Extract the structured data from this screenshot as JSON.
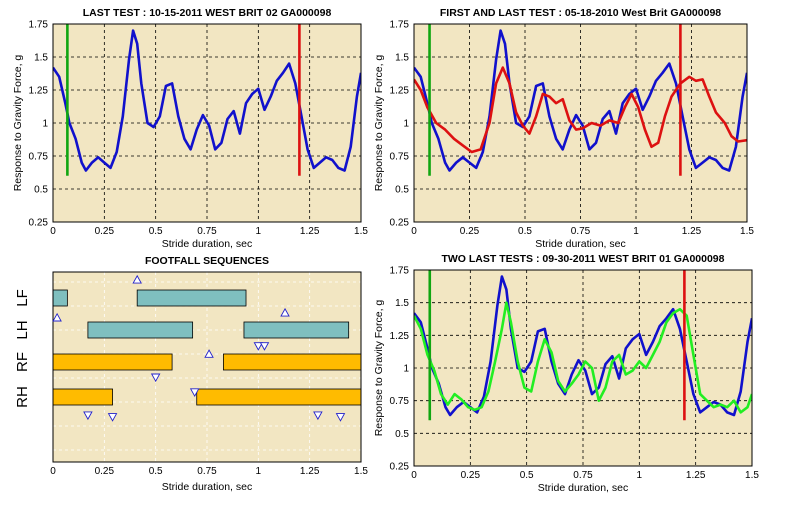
{
  "colors": {
    "plot_bg": "#f2e6c2",
    "blue": "#1111cc",
    "red": "#dd1111",
    "green": "#11a611",
    "lime": "#22ee22",
    "teal": "#7fbfbf",
    "orange": "#ffbb00"
  },
  "chart_data": [
    {
      "type": "line",
      "title": "LAST TEST : 10-15-2011 WEST BRIT 02 GA000098",
      "xlabel": "Stride duration, sec",
      "ylabel": "Response to Gravity Force, g",
      "xlim": [
        0,
        1.5
      ],
      "ylim": [
        0.25,
        1.75
      ],
      "xticks": [
        "0",
        "0.25",
        "0.5",
        "0.75",
        "1",
        "1.25",
        "1.5"
      ],
      "yticks": [
        "0.25",
        "0.5",
        "0.75",
        "1",
        "1.25",
        "1.5",
        "1.75"
      ],
      "grid": true,
      "markers": [
        {
          "x": 0.07,
          "y0": 0.6,
          "y1": 1.75,
          "color": "green"
        },
        {
          "x": 1.2,
          "y0": 0.6,
          "y1": 1.75,
          "color": "red"
        }
      ],
      "series": [
        {
          "color": "blue",
          "x": [
            0,
            0.03,
            0.06,
            0.08,
            0.11,
            0.14,
            0.16,
            0.19,
            0.22,
            0.25,
            0.28,
            0.31,
            0.34,
            0.37,
            0.39,
            0.41,
            0.43,
            0.46,
            0.49,
            0.52,
            0.55,
            0.58,
            0.61,
            0.64,
            0.67,
            0.7,
            0.73,
            0.76,
            0.79,
            0.82,
            0.85,
            0.88,
            0.91,
            0.94,
            0.97,
            1.0,
            1.03,
            1.06,
            1.09,
            1.12,
            1.15,
            1.18,
            1.21,
            1.24,
            1.27,
            1.3,
            1.33,
            1.36,
            1.39,
            1.42,
            1.45,
            1.48,
            1.5
          ],
          "y": [
            1.42,
            1.35,
            1.15,
            1.0,
            0.88,
            0.7,
            0.64,
            0.7,
            0.74,
            0.7,
            0.66,
            0.78,
            1.05,
            1.48,
            1.7,
            1.6,
            1.3,
            1.0,
            0.97,
            1.05,
            1.28,
            1.3,
            1.05,
            0.88,
            0.8,
            0.95,
            1.06,
            0.98,
            0.8,
            0.85,
            1.03,
            1.09,
            0.92,
            1.15,
            1.22,
            1.26,
            1.1,
            1.2,
            1.32,
            1.38,
            1.45,
            1.3,
            1.05,
            0.8,
            0.66,
            0.7,
            0.74,
            0.72,
            0.66,
            0.64,
            0.82,
            1.2,
            1.38
          ]
        }
      ]
    },
    {
      "type": "line",
      "title": "FIRST AND LAST TEST : 05-18-2010 West Brit GA000098",
      "xlabel": "Stride duration, sec",
      "ylabel": "Response to Gravity Force, g",
      "xlim": [
        0,
        1.5
      ],
      "ylim": [
        0.25,
        1.75
      ],
      "xticks": [
        "0",
        "0.25",
        "0.5",
        "0.75",
        "1",
        "1.25",
        "1.5"
      ],
      "yticks": [
        "0.25",
        "0.5",
        "0.75",
        "1",
        "1.25",
        "1.5",
        "1.75"
      ],
      "grid": true,
      "markers": [
        {
          "x": 0.07,
          "y0": 0.6,
          "y1": 1.75,
          "color": "green"
        },
        {
          "x": 1.2,
          "y0": 0.6,
          "y1": 1.75,
          "color": "red"
        }
      ],
      "series": [
        {
          "color": "blue",
          "x": [
            0,
            0.03,
            0.06,
            0.08,
            0.11,
            0.14,
            0.16,
            0.19,
            0.22,
            0.25,
            0.28,
            0.31,
            0.34,
            0.37,
            0.39,
            0.41,
            0.43,
            0.46,
            0.49,
            0.52,
            0.55,
            0.58,
            0.61,
            0.64,
            0.67,
            0.7,
            0.73,
            0.76,
            0.79,
            0.82,
            0.85,
            0.88,
            0.91,
            0.94,
            0.97,
            1.0,
            1.03,
            1.06,
            1.09,
            1.12,
            1.15,
            1.18,
            1.21,
            1.24,
            1.27,
            1.3,
            1.33,
            1.36,
            1.39,
            1.42,
            1.45,
            1.48,
            1.5
          ],
          "y": [
            1.42,
            1.35,
            1.15,
            1.0,
            0.88,
            0.7,
            0.64,
            0.7,
            0.74,
            0.7,
            0.66,
            0.78,
            1.05,
            1.48,
            1.7,
            1.6,
            1.3,
            1.0,
            0.97,
            1.05,
            1.28,
            1.3,
            1.05,
            0.88,
            0.8,
            0.95,
            1.06,
            0.98,
            0.8,
            0.85,
            1.03,
            1.09,
            0.92,
            1.15,
            1.22,
            1.26,
            1.1,
            1.2,
            1.32,
            1.38,
            1.45,
            1.3,
            1.05,
            0.8,
            0.66,
            0.7,
            0.74,
            0.72,
            0.66,
            0.64,
            0.82,
            1.2,
            1.38
          ]
        },
        {
          "color": "red",
          "x": [
            0,
            0.03,
            0.06,
            0.1,
            0.14,
            0.18,
            0.22,
            0.26,
            0.3,
            0.34,
            0.37,
            0.4,
            0.43,
            0.46,
            0.49,
            0.52,
            0.55,
            0.58,
            0.61,
            0.64,
            0.67,
            0.7,
            0.73,
            0.76,
            0.8,
            0.84,
            0.88,
            0.92,
            0.95,
            0.98,
            1.01,
            1.04,
            1.07,
            1.1,
            1.13,
            1.16,
            1.2,
            1.24,
            1.27,
            1.3,
            1.33,
            1.36,
            1.4,
            1.43,
            1.46,
            1.5
          ],
          "y": [
            1.33,
            1.25,
            1.12,
            1.0,
            0.95,
            0.88,
            0.83,
            0.78,
            0.8,
            1.0,
            1.3,
            1.42,
            1.3,
            1.08,
            0.98,
            0.92,
            1.05,
            1.22,
            1.2,
            1.15,
            1.18,
            1.02,
            0.95,
            0.96,
            1.0,
            0.98,
            1.02,
            1.0,
            1.12,
            1.22,
            1.12,
            0.95,
            0.82,
            0.85,
            1.05,
            1.2,
            1.3,
            1.35,
            1.32,
            1.33,
            1.2,
            1.08,
            1.0,
            0.9,
            0.86,
            0.87
          ]
        }
      ]
    },
    {
      "type": "bar",
      "title": "FOOTFALL SEQUENCES",
      "xlabel": "Stride duration, sec",
      "xlim": [
        0,
        1.5
      ],
      "xticks": [
        "0",
        "0.25",
        "0.5",
        "0.75",
        "1",
        "1.25",
        "1.5"
      ],
      "lanes": [
        "LF",
        "LH",
        "RF",
        "RH"
      ],
      "bars": [
        {
          "lane": 0,
          "start": 0.0,
          "end": 0.07,
          "color": "teal"
        },
        {
          "lane": 0,
          "start": 0.41,
          "end": 0.94,
          "color": "teal"
        },
        {
          "lane": 1,
          "start": 0.17,
          "end": 0.68,
          "color": "teal"
        },
        {
          "lane": 1,
          "start": 0.93,
          "end": 1.44,
          "color": "teal"
        },
        {
          "lane": 2,
          "start": 0.0,
          "end": 0.58,
          "color": "orange"
        },
        {
          "lane": 2,
          "start": 0.83,
          "end": 1.5,
          "color": "orange"
        },
        {
          "lane": 3,
          "start": 0.0,
          "end": 0.29,
          "color": "orange"
        },
        {
          "lane": 3,
          "start": 0.7,
          "end": 1.5,
          "color": "orange"
        }
      ],
      "events": [
        {
          "x": 0.41,
          "lane_pos": -0.55,
          "dir": "up"
        },
        {
          "x": 0.02,
          "lane_pos": 0.6,
          "dir": "up"
        },
        {
          "x": 1.13,
          "lane_pos": 0.45,
          "dir": "up"
        },
        {
          "x": 0.76,
          "lane_pos": 1.7,
          "dir": "up"
        },
        {
          "x": 1.0,
          "lane_pos": 1.45,
          "dir": "down"
        },
        {
          "x": 1.03,
          "lane_pos": 1.45,
          "dir": "down"
        },
        {
          "x": 0.5,
          "lane_pos": 2.4,
          "dir": "down"
        },
        {
          "x": 0.17,
          "lane_pos": 3.55,
          "dir": "down"
        },
        {
          "x": 0.29,
          "lane_pos": 3.6,
          "dir": "down"
        },
        {
          "x": 0.69,
          "lane_pos": 2.85,
          "dir": "down"
        },
        {
          "x": 1.29,
          "lane_pos": 3.55,
          "dir": "down"
        },
        {
          "x": 1.4,
          "lane_pos": 3.6,
          "dir": "down"
        }
      ]
    },
    {
      "type": "line",
      "title": "TWO LAST TESTS : 09-30-2011 WEST BRIT 01 GA000098",
      "xlabel": "Stride duration, sec",
      "ylabel": "Response to Gravity Force, g",
      "xlim": [
        0,
        1.5
      ],
      "ylim": [
        0.25,
        1.75
      ],
      "xticks": [
        "0",
        "0.25",
        "0.5",
        "0.75",
        "1",
        "1.25",
        "1.5"
      ],
      "yticks": [
        "0.25",
        "0.5",
        "0.75",
        "1",
        "1.25",
        "1.5",
        "1.75"
      ],
      "grid": true,
      "markers": [
        {
          "x": 0.07,
          "y0": 0.6,
          "y1": 1.75,
          "color": "green"
        },
        {
          "x": 1.2,
          "y0": 0.6,
          "y1": 1.75,
          "color": "red"
        }
      ],
      "series": [
        {
          "color": "blue",
          "x": [
            0,
            0.03,
            0.06,
            0.08,
            0.11,
            0.14,
            0.16,
            0.19,
            0.22,
            0.25,
            0.28,
            0.31,
            0.34,
            0.37,
            0.39,
            0.41,
            0.43,
            0.46,
            0.49,
            0.52,
            0.55,
            0.58,
            0.61,
            0.64,
            0.67,
            0.7,
            0.73,
            0.76,
            0.79,
            0.82,
            0.85,
            0.88,
            0.91,
            0.94,
            0.97,
            1.0,
            1.03,
            1.06,
            1.09,
            1.12,
            1.15,
            1.18,
            1.21,
            1.24,
            1.27,
            1.3,
            1.33,
            1.36,
            1.39,
            1.42,
            1.45,
            1.48,
            1.5
          ],
          "y": [
            1.42,
            1.35,
            1.15,
            1.0,
            0.88,
            0.7,
            0.64,
            0.7,
            0.74,
            0.7,
            0.66,
            0.78,
            1.05,
            1.48,
            1.7,
            1.6,
            1.3,
            1.0,
            0.97,
            1.05,
            1.28,
            1.3,
            1.05,
            0.88,
            0.8,
            0.95,
            1.06,
            0.98,
            0.8,
            0.85,
            1.03,
            1.09,
            0.92,
            1.15,
            1.22,
            1.26,
            1.1,
            1.2,
            1.32,
            1.38,
            1.45,
            1.3,
            1.05,
            0.8,
            0.66,
            0.7,
            0.74,
            0.72,
            0.66,
            0.64,
            0.82,
            1.2,
            1.38
          ]
        },
        {
          "color": "lime",
          "x": [
            0,
            0.03,
            0.06,
            0.09,
            0.12,
            0.15,
            0.18,
            0.21,
            0.24,
            0.27,
            0.3,
            0.33,
            0.36,
            0.39,
            0.41,
            0.43,
            0.46,
            0.49,
            0.52,
            0.55,
            0.58,
            0.61,
            0.64,
            0.67,
            0.7,
            0.73,
            0.76,
            0.79,
            0.82,
            0.85,
            0.88,
            0.91,
            0.94,
            0.97,
            1.0,
            1.03,
            1.06,
            1.09,
            1.12,
            1.15,
            1.18,
            1.21,
            1.24,
            1.27,
            1.3,
            1.33,
            1.36,
            1.39,
            1.42,
            1.45,
            1.48,
            1.5
          ],
          "y": [
            1.4,
            1.3,
            1.1,
            0.98,
            0.8,
            0.72,
            0.8,
            0.76,
            0.7,
            0.68,
            0.7,
            0.82,
            1.05,
            1.3,
            1.5,
            1.35,
            1.05,
            0.85,
            0.82,
            1.05,
            1.22,
            1.12,
            0.9,
            0.82,
            0.88,
            0.95,
            1.05,
            1.0,
            0.75,
            0.85,
            1.05,
            1.1,
            0.95,
            0.98,
            1.05,
            1.0,
            1.1,
            1.2,
            1.35,
            1.42,
            1.45,
            1.4,
            1.1,
            0.8,
            0.75,
            0.7,
            0.72,
            0.7,
            0.75,
            0.66,
            0.7,
            0.8
          ]
        }
      ]
    }
  ]
}
